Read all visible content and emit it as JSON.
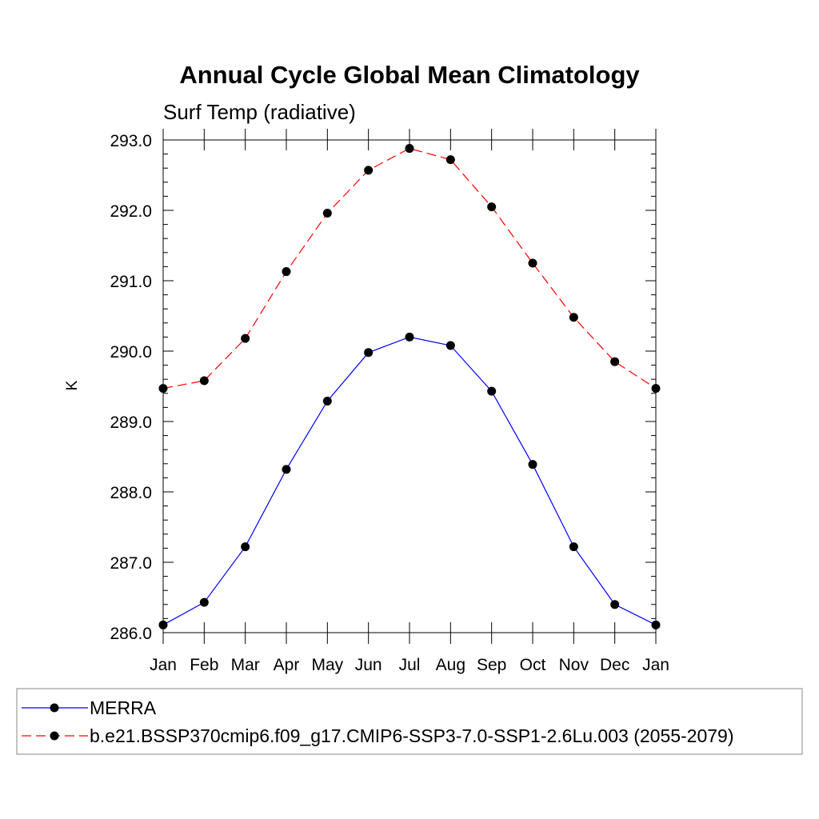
{
  "chart_data": {
    "type": "line",
    "title": "Annual Cycle Global Mean Climatology",
    "subtitle": "Surf Temp (radiative)",
    "xlabel": "",
    "ylabel": "K",
    "categories": [
      "Jan",
      "Feb",
      "Mar",
      "Apr",
      "May",
      "Jun",
      "Jul",
      "Aug",
      "Sep",
      "Oct",
      "Nov",
      "Dec",
      "Jan"
    ],
    "ylim": [
      286.0,
      293.0
    ],
    "yticks": [
      "286.0",
      "287.0",
      "288.0",
      "289.0",
      "290.0",
      "291.0",
      "292.0",
      "293.0"
    ],
    "grid": false,
    "legend_position": "bottom",
    "series": [
      {
        "name": "MERRA",
        "color": "#0000ff",
        "style": "solid",
        "values": [
          286.11,
          286.43,
          287.22,
          288.32,
          289.29,
          289.98,
          290.2,
          290.08,
          289.43,
          288.39,
          287.22,
          286.4,
          286.11
        ]
      },
      {
        "name": "b.e21.BSSP370cmip6.f09_g17.CMIP6-SSP3-7.0-SSP1-2.6Lu.003 (2055-2079)",
        "color": "#ff0000",
        "style": "dashed",
        "values": [
          289.47,
          289.58,
          290.18,
          291.13,
          291.96,
          292.57,
          292.88,
          292.72,
          292.05,
          291.25,
          290.48,
          289.85,
          289.47
        ]
      }
    ]
  }
}
